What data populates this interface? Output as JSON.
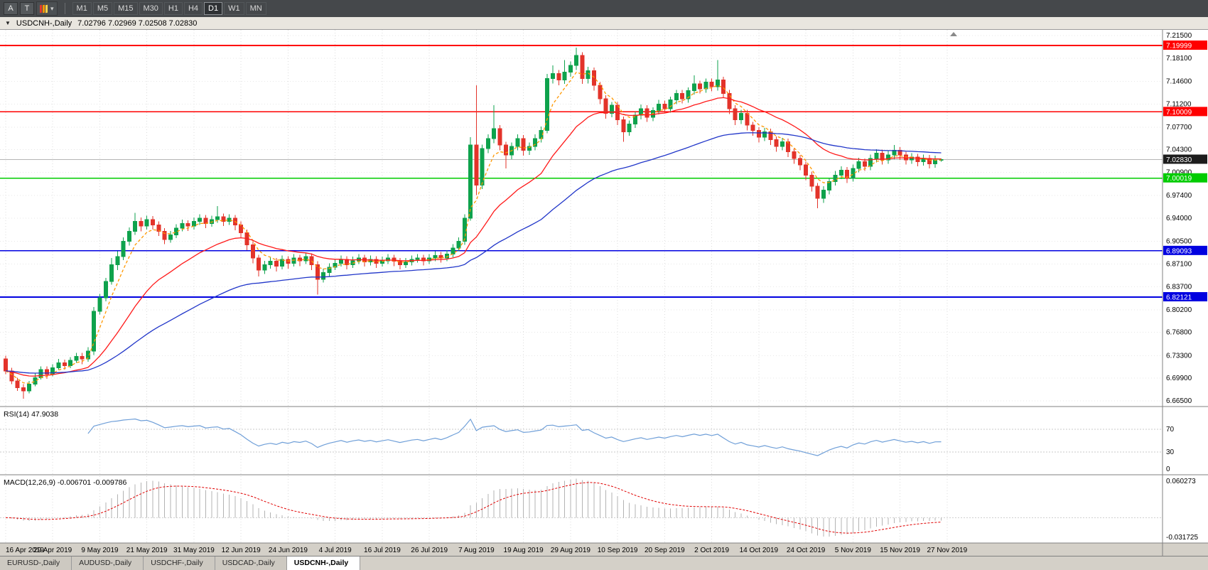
{
  "icons": {
    "collapse": "▼",
    "dropdown": "▾"
  },
  "toolbar": {
    "a_label": "A",
    "t_label": "T",
    "timeframes": [
      "M1",
      "M5",
      "M15",
      "M30",
      "H1",
      "H4",
      "D1",
      "W1",
      "MN"
    ],
    "active_timeframe": "D1"
  },
  "header": {
    "title": "USDCNH-,Daily",
    "ohlc": "7.02796 7.02969 7.02508 7.02830"
  },
  "tabs": {
    "items": [
      "EURUSD-,Daily",
      "AUDUSD-,Daily",
      "USDCHF-,Daily",
      "USDCAD-,Daily",
      "USDCNH-,Daily"
    ],
    "active": "USDCNH-,Daily"
  },
  "chart_data": {
    "type": "candlestick",
    "symbol": "USDCNH-",
    "timeframe": "Daily",
    "current_bar": {
      "open": 7.02796,
      "high": 7.02969,
      "low": 7.02508,
      "close": 7.0283
    },
    "ylim": [
      6.665,
      7.215
    ],
    "y_ticks": [
      "7.21500",
      "7.18100",
      "7.14600",
      "7.11200",
      "7.07700",
      "7.04300",
      "7.00900",
      "6.97400",
      "6.94000",
      "6.90500",
      "6.87100",
      "6.83700",
      "6.80200",
      "6.76800",
      "6.73300",
      "6.69900",
      "6.66500"
    ],
    "x_ticks": [
      "16 Apr 2019",
      "29 Apr 2019",
      "9 May 2019",
      "21 May 2019",
      "31 May 2019",
      "12 Jun 2019",
      "24 Jun 2019",
      "4 Jul 2019",
      "16 Jul 2019",
      "26 Jul 2019",
      "7 Aug 2019",
      "19 Aug 2019",
      "29 Aug 2019",
      "10 Sep 2019",
      "20 Sep 2019",
      "2 Oct 2019",
      "14 Oct 2019",
      "24 Oct 2019",
      "5 Nov 2019",
      "15 Nov 2019",
      "27 Nov 2019"
    ],
    "x_tick_bar_step": 8,
    "colors": {
      "up": "#0ea24c",
      "down": "#e3332a",
      "ma_fast": "#ff9800",
      "ma_mid": "#ff1a1a",
      "ma_slow": "#2136c9",
      "rsi_line": "#6f9fd8",
      "macd_hist": "#b3b3b3",
      "macd_signal": "#e00000",
      "price_badge_bg": "#1c1c1c"
    },
    "hlines": [
      {
        "price": 7.19999,
        "label": "7.19999",
        "color": "#ff0000"
      },
      {
        "price": 7.10009,
        "label": "7.10009",
        "color": "#ff0000"
      },
      {
        "price": 7.00019,
        "label": "7.00019",
        "color": "#00cc00"
      },
      {
        "price": 6.89093,
        "label": "6.89093",
        "color": "#0000e0"
      },
      {
        "price": 6.82121,
        "label": "6.82121",
        "color": "#0000e0"
      }
    ],
    "current_price": {
      "value": 7.0283,
      "label": "7.02830"
    },
    "moving_averages": [
      {
        "period": 5,
        "color": "#ff9800",
        "dash": "4 3"
      },
      {
        "period": 20,
        "color": "#ff1a1a"
      },
      {
        "period": 55,
        "color": "#2136c9"
      }
    ],
    "indicators": [
      {
        "id": "rsi",
        "label": "RSI(14) 47.9038",
        "period": 14,
        "value": 47.9038,
        "levels": [
          70,
          30
        ],
        "range": [
          0,
          100
        ],
        "color": "#6f9fd8",
        "axis_labels": [
          {
            "value": 70,
            "label": "70"
          },
          {
            "value": 30,
            "label": "30"
          },
          {
            "value": 0,
            "label": "0"
          }
        ]
      },
      {
        "id": "macd",
        "label": "MACD(12,26,9) -0.006701 -0.009786",
        "params": [
          12,
          26,
          9
        ],
        "values": {
          "macd": -0.006701,
          "signal": -0.009786
        },
        "range": [
          -0.031725,
          0.060273
        ],
        "axis_labels": [
          "0.060273",
          "-0.031725"
        ]
      }
    ],
    "candles": [
      [
        6.728,
        6.733,
        6.705,
        6.71
      ],
      [
        6.71,
        6.715,
        6.69,
        6.695
      ],
      [
        6.695,
        6.7,
        6.68,
        6.685
      ],
      [
        6.685,
        6.69,
        6.668,
        6.68
      ],
      [
        6.68,
        6.695,
        6.676,
        6.69
      ],
      [
        6.69,
        6.706,
        6.687,
        6.7
      ],
      [
        6.7,
        6.717,
        6.697,
        6.712
      ],
      [
        6.712,
        6.717,
        6.698,
        6.705
      ],
      [
        6.705,
        6.72,
        6.702,
        6.715
      ],
      [
        6.715,
        6.728,
        6.712,
        6.722
      ],
      [
        6.722,
        6.727,
        6.712,
        6.718
      ],
      [
        6.718,
        6.731,
        6.714,
        6.726
      ],
      [
        6.726,
        6.737,
        6.722,
        6.732
      ],
      [
        6.732,
        6.737,
        6.72,
        6.728
      ],
      [
        6.728,
        6.746,
        6.724,
        6.74
      ],
      [
        6.74,
        6.806,
        6.734,
        6.8
      ],
      [
        6.8,
        6.826,
        6.795,
        6.82
      ],
      [
        6.82,
        6.85,
        6.815,
        6.845
      ],
      [
        6.845,
        6.88,
        6.84,
        6.87
      ],
      [
        6.87,
        6.89,
        6.862,
        6.882
      ],
      [
        6.882,
        6.911,
        6.877,
        6.905
      ],
      [
        6.905,
        6.926,
        6.899,
        6.92
      ],
      [
        6.92,
        6.948,
        6.915,
        6.935
      ],
      [
        6.935,
        6.941,
        6.92,
        6.928
      ],
      [
        6.928,
        6.944,
        6.923,
        6.938
      ],
      [
        6.938,
        6.943,
        6.923,
        6.93
      ],
      [
        6.93,
        6.935,
        6.913,
        6.92
      ],
      [
        6.92,
        6.925,
        6.901,
        6.908
      ],
      [
        6.908,
        6.921,
        6.903,
        6.915
      ],
      [
        6.915,
        6.931,
        6.91,
        6.925
      ],
      [
        6.925,
        6.938,
        6.92,
        6.932
      ],
      [
        6.932,
        6.937,
        6.921,
        6.928
      ],
      [
        6.928,
        6.941,
        6.923,
        6.935
      ],
      [
        6.935,
        6.946,
        6.93,
        6.94
      ],
      [
        6.94,
        6.945,
        6.925,
        6.932
      ],
      [
        6.932,
        6.944,
        6.927,
        6.938
      ],
      [
        6.938,
        6.958,
        6.933,
        6.942
      ],
      [
        6.942,
        6.947,
        6.928,
        6.935
      ],
      [
        6.935,
        6.946,
        6.93,
        6.94
      ],
      [
        6.94,
        6.945,
        6.922,
        6.93
      ],
      [
        6.93,
        6.935,
        6.91,
        6.918
      ],
      [
        6.918,
        6.923,
        6.892,
        6.9
      ],
      [
        6.9,
        6.905,
        6.872,
        6.88
      ],
      [
        6.88,
        6.885,
        6.852,
        6.862
      ],
      [
        6.862,
        6.876,
        6.856,
        6.87
      ],
      [
        6.87,
        6.881,
        6.864,
        6.875
      ],
      [
        6.875,
        6.88,
        6.86,
        6.868
      ],
      [
        6.868,
        6.884,
        6.863,
        6.878
      ],
      [
        6.878,
        6.883,
        6.864,
        6.872
      ],
      [
        6.872,
        6.886,
        6.867,
        6.88
      ],
      [
        6.88,
        6.885,
        6.868,
        6.876
      ],
      [
        6.876,
        6.888,
        6.871,
        6.882
      ],
      [
        6.882,
        6.887,
        6.862,
        6.87
      ],
      [
        6.87,
        6.875,
        6.825,
        6.848
      ],
      [
        6.848,
        6.864,
        6.843,
        6.858
      ],
      [
        6.858,
        6.872,
        6.853,
        6.866
      ],
      [
        6.866,
        6.878,
        6.862,
        6.872
      ],
      [
        6.872,
        6.884,
        6.867,
        6.878
      ],
      [
        6.878,
        6.883,
        6.863,
        6.87
      ],
      [
        6.87,
        6.882,
        6.865,
        6.876
      ],
      [
        6.876,
        6.886,
        6.871,
        6.88
      ],
      [
        6.88,
        6.885,
        6.867,
        6.874
      ],
      [
        6.874,
        6.884,
        6.869,
        6.878
      ],
      [
        6.878,
        6.883,
        6.865,
        6.872
      ],
      [
        6.872,
        6.882,
        6.867,
        6.876
      ],
      [
        6.876,
        6.886,
        6.871,
        6.88
      ],
      [
        6.88,
        6.885,
        6.868,
        6.875
      ],
      [
        6.875,
        6.88,
        6.863,
        6.87
      ],
      [
        6.87,
        6.88,
        6.865,
        6.874
      ],
      [
        6.874,
        6.884,
        6.869,
        6.878
      ],
      [
        6.878,
        6.886,
        6.873,
        6.88
      ],
      [
        6.88,
        6.885,
        6.869,
        6.876
      ],
      [
        6.876,
        6.886,
        6.871,
        6.88
      ],
      [
        6.88,
        6.89,
        6.875,
        6.884
      ],
      [
        6.884,
        6.889,
        6.873,
        6.88
      ],
      [
        6.88,
        6.892,
        6.875,
        6.886
      ],
      [
        6.886,
        6.901,
        6.881,
        6.895
      ],
      [
        6.895,
        6.911,
        6.89,
        6.905
      ],
      [
        6.905,
        6.946,
        6.9,
        6.94
      ],
      [
        6.94,
        7.062,
        6.936,
        7.05
      ],
      [
        7.05,
        7.14,
        6.975,
        6.99
      ],
      [
        6.99,
        7.051,
        6.984,
        7.045
      ],
      [
        7.045,
        7.066,
        7.038,
        7.06
      ],
      [
        7.06,
        7.11,
        7.053,
        7.075
      ],
      [
        7.075,
        7.08,
        7.042,
        7.05
      ],
      [
        7.05,
        7.055,
        7.015,
        7.035
      ],
      [
        7.035,
        7.054,
        7.029,
        7.048
      ],
      [
        7.048,
        7.066,
        7.042,
        7.06
      ],
      [
        7.06,
        7.065,
        7.034,
        7.042
      ],
      [
        7.042,
        7.054,
        7.035,
        7.048
      ],
      [
        7.048,
        7.066,
        7.042,
        7.06
      ],
      [
        7.06,
        7.078,
        7.054,
        7.072
      ],
      [
        7.072,
        7.157,
        7.068,
        7.15
      ],
      [
        7.15,
        7.17,
        7.143,
        7.158
      ],
      [
        7.158,
        7.163,
        7.14,
        7.148
      ],
      [
        7.148,
        7.178,
        7.142,
        7.16
      ],
      [
        7.16,
        7.176,
        7.153,
        7.17
      ],
      [
        7.17,
        7.197,
        7.163,
        7.185
      ],
      [
        7.185,
        7.19,
        7.142,
        7.15
      ],
      [
        7.15,
        7.168,
        7.143,
        7.162
      ],
      [
        7.162,
        7.167,
        7.132,
        7.14
      ],
      [
        7.14,
        7.145,
        7.112,
        7.12
      ],
      [
        7.12,
        7.125,
        7.09,
        7.098
      ],
      [
        7.098,
        7.115,
        7.092,
        7.11
      ],
      [
        7.11,
        7.115,
        7.08,
        7.088
      ],
      [
        7.088,
        7.093,
        7.055,
        7.07
      ],
      [
        7.07,
        7.087,
        7.064,
        7.082
      ],
      [
        7.082,
        7.1,
        7.076,
        7.095
      ],
      [
        7.095,
        7.111,
        7.089,
        7.105
      ],
      [
        7.105,
        7.11,
        7.085,
        7.092
      ],
      [
        7.092,
        7.107,
        7.086,
        7.102
      ],
      [
        7.102,
        7.118,
        7.096,
        7.112
      ],
      [
        7.112,
        7.117,
        7.098,
        7.105
      ],
      [
        7.105,
        7.123,
        7.099,
        7.118
      ],
      [
        7.118,
        7.133,
        7.112,
        7.128
      ],
      [
        7.128,
        7.133,
        7.113,
        7.12
      ],
      [
        7.12,
        7.137,
        7.114,
        7.132
      ],
      [
        7.132,
        7.155,
        7.126,
        7.142
      ],
      [
        7.142,
        7.147,
        7.128,
        7.135
      ],
      [
        7.135,
        7.15,
        7.129,
        7.145
      ],
      [
        7.145,
        7.15,
        7.131,
        7.138
      ],
      [
        7.138,
        7.178,
        7.132,
        7.148
      ],
      [
        7.148,
        7.153,
        7.121,
        7.128
      ],
      [
        7.128,
        7.133,
        7.097,
        7.105
      ],
      [
        7.105,
        7.11,
        7.08,
        7.088
      ],
      [
        7.088,
        7.103,
        7.082,
        7.098
      ],
      [
        7.098,
        7.103,
        7.072,
        7.08
      ],
      [
        7.08,
        7.085,
        7.064,
        7.072
      ],
      [
        7.072,
        7.077,
        7.054,
        7.062
      ],
      [
        7.062,
        7.076,
        7.056,
        7.07
      ],
      [
        7.07,
        7.075,
        7.05,
        7.058
      ],
      [
        7.058,
        7.063,
        7.04,
        7.048
      ],
      [
        7.048,
        7.061,
        7.042,
        7.055
      ],
      [
        7.055,
        7.06,
        7.032,
        7.04
      ],
      [
        7.04,
        7.045,
        7.022,
        7.03
      ],
      [
        7.03,
        7.035,
        7.012,
        7.02
      ],
      [
        7.02,
        7.025,
        6.997,
        7.005
      ],
      [
        7.005,
        7.01,
        6.98,
        6.988
      ],
      [
        6.988,
        6.993,
        6.955,
        6.97
      ],
      [
        6.97,
        6.988,
        6.963,
        6.982
      ],
      [
        6.982,
        7.001,
        6.976,
        6.995
      ],
      [
        6.995,
        7.011,
        6.989,
        7.005
      ],
      [
        7.005,
        7.018,
        6.999,
        7.012
      ],
      [
        7.012,
        7.017,
        6.993,
        7.0
      ],
      [
        7.0,
        7.021,
        6.995,
        7.015
      ],
      [
        7.015,
        7.031,
        7.009,
        7.025
      ],
      [
        7.025,
        7.03,
        7.011,
        7.018
      ],
      [
        7.018,
        7.036,
        7.012,
        7.03
      ],
      [
        7.03,
        7.044,
        7.024,
        7.038
      ],
      [
        7.038,
        7.043,
        7.021,
        7.028
      ],
      [
        7.028,
        7.041,
        7.022,
        7.035
      ],
      [
        7.035,
        7.05,
        7.029,
        7.042
      ],
      [
        7.042,
        7.047,
        7.028,
        7.035
      ],
      [
        7.035,
        7.04,
        7.021,
        7.028
      ],
      [
        7.028,
        7.038,
        7.022,
        7.032
      ],
      [
        7.032,
        7.037,
        7.018,
        7.025
      ],
      [
        7.025,
        7.036,
        7.019,
        7.03
      ],
      [
        7.03,
        7.035,
        7.015,
        7.022
      ],
      [
        7.022,
        7.034,
        7.016,
        7.028
      ],
      [
        7.028,
        7.0297,
        7.0251,
        7.0283
      ]
    ]
  }
}
